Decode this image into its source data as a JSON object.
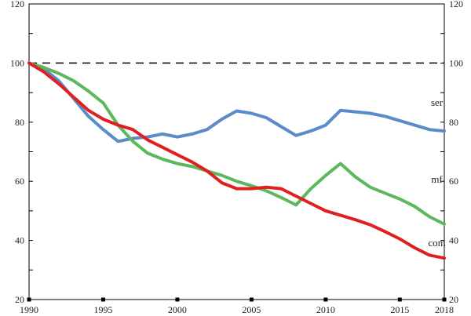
{
  "chart_data": {
    "type": "line",
    "title": "",
    "xlabel": "",
    "ylabel": "",
    "xlim": [
      1990,
      2018
    ],
    "ylim": [
      20,
      120
    ],
    "x_ticks": [
      1990,
      1995,
      2000,
      2005,
      2010,
      2015,
      2018
    ],
    "y_ticks": [
      20,
      40,
      60,
      80,
      100,
      120
    ],
    "grid": false,
    "reference_line": {
      "y": 100,
      "style": "dashed",
      "color": "#000000"
    },
    "x": [
      1990,
      1991,
      1992,
      1993,
      1994,
      1995,
      1996,
      1997,
      1998,
      1999,
      2000,
      2001,
      2002,
      2003,
      2004,
      2005,
      2006,
      2007,
      2008,
      2009,
      2010,
      2011,
      2012,
      2013,
      2014,
      2015,
      2016,
      2017,
      2018
    ],
    "series": [
      {
        "name": "ser",
        "color": "#5b8bc9",
        "values": [
          100,
          98,
          94,
          88,
          82,
          77.5,
          73.5,
          74.5,
          75,
          76,
          75,
          76,
          77.5,
          81,
          83.8,
          83,
          81.5,
          78.5,
          75.5,
          77,
          79,
          84,
          83.5,
          83,
          82,
          80.5,
          79,
          77.5,
          77
        ]
      },
      {
        "name": "mf",
        "color": "#5cb85c",
        "values": [
          100,
          98.5,
          96.5,
          94,
          90.5,
          86.5,
          79,
          73.5,
          69.5,
          67.5,
          66,
          65,
          63.5,
          62,
          60,
          58.5,
          56.8,
          54.5,
          52,
          57.5,
          62,
          66,
          61.5,
          58,
          56,
          54,
          51.5,
          48,
          45.5
        ]
      },
      {
        "name": "com",
        "color": "#e02020",
        "values": [
          100,
          97,
          93,
          88.5,
          84,
          81,
          79,
          77.5,
          74,
          71.5,
          69,
          66.5,
          63.5,
          59.5,
          57.5,
          57.5,
          58,
          57.5,
          55,
          52.5,
          50,
          48.5,
          47,
          45.3,
          43,
          40.5,
          37.5,
          35,
          34
        ]
      }
    ],
    "label_positions": {
      "ser": [
        2017.5,
        85.5
      ],
      "mf": [
        2017.5,
        59.5
      ],
      "com": [
        2017.5,
        38
      ]
    }
  }
}
